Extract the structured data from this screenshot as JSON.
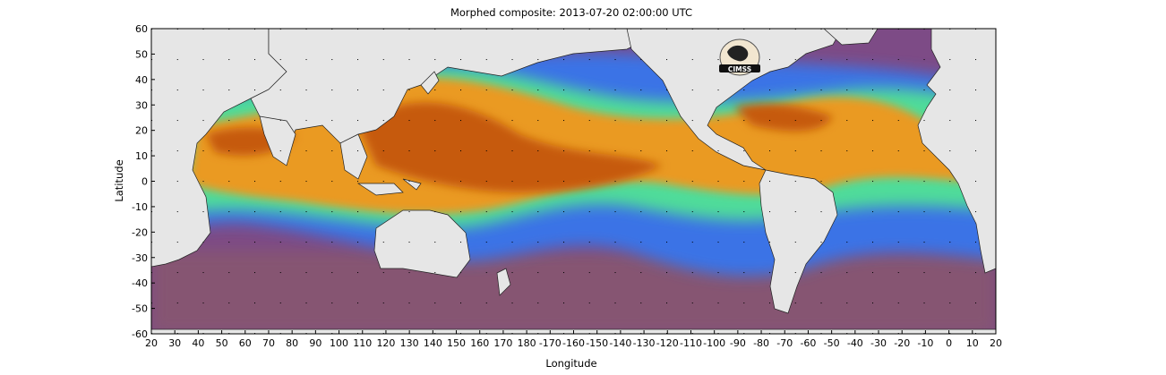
{
  "title": "Morphed composite: 2013-07-20 02:00:00 UTC",
  "xaxis": {
    "label": "Longitude",
    "ticks": [
      "20",
      "30",
      "40",
      "50",
      "60",
      "70",
      "80",
      "90",
      "100",
      "110",
      "120",
      "130",
      "140",
      "150",
      "160",
      "170",
      "180",
      "-170",
      "-160",
      "-150",
      "-140",
      "-130",
      "-120",
      "-110",
      "-100",
      "-90",
      "-80",
      "-70",
      "-60",
      "-50",
      "-40",
      "-30",
      "-20",
      "-10",
      "0",
      "10",
      "20"
    ]
  },
  "yaxis": {
    "label": "Latitude",
    "ticks": [
      "60",
      "50",
      "40",
      "30",
      "20",
      "10",
      "0",
      "-10",
      "-20",
      "-30",
      "-40",
      "-50",
      "-60"
    ]
  },
  "logo": {
    "text": "CIMSS",
    "icon": "cimss-logo-icon"
  },
  "colors": {
    "land": "#e6e6e6",
    "ocean_dry": "#7a3f86",
    "moist_low": "#2e6fe8",
    "moist_mid": "#4fe0a0",
    "moist_high": "#e8a020",
    "moist_max": "#c25a0a"
  }
}
